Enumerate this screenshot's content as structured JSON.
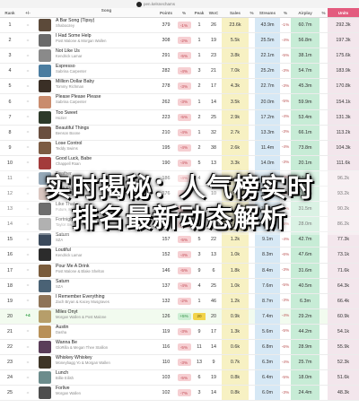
{
  "header": {
    "user_handle": "pen.kelsnechams",
    "columns": {
      "rank": "Rank",
      "delta": "+/-",
      "song": "Song",
      "points": "Points",
      "points_delta": "%",
      "peak": "Peak",
      "wow": "WoC",
      "sales": "Sales",
      "sales_delta": "%",
      "streams": "Streams",
      "streams_delta": "%",
      "airplay": "Airplay",
      "airplay_delta": "%",
      "units": "Units"
    }
  },
  "rows": [
    {
      "rank": "1",
      "delta": "=",
      "title": "A Bar Song (Tipsy)",
      "artist": "Shaboozey",
      "points": "379",
      "pd": "-1%",
      "pd_kind": "down",
      "peak": "1",
      "wow": "26",
      "sales": "23.6k",
      "sd": "",
      "streams": "43.9m",
      "std": "-1%",
      "airplay": "60.7m",
      "ad": "",
      "units": "292.3k",
      "art": "#5c4a3a"
    },
    {
      "rank": "2",
      "delta": "=",
      "title": "I Had Some Help",
      "artist": "Post Malone & Morgan Wallen",
      "points": "308",
      "pd": "-2%",
      "pd_kind": "down",
      "peak": "1",
      "wow": "19",
      "sales": "5.5k",
      "sd": "",
      "streams": "25.5m",
      "std": "-4%",
      "airplay": "56.8m",
      "ad": "",
      "units": "197.3k",
      "art": "#6b6b6b"
    },
    {
      "rank": "3",
      "delta": "=",
      "title": "Not Like Us",
      "artist": "Kendrick Lamar",
      "points": "291",
      "pd": "-5%",
      "pd_kind": "down",
      "peak": "1",
      "wow": "23",
      "sales": "3.8k",
      "sd": "",
      "streams": "22.1m",
      "std": "-5%",
      "airplay": "38.1m",
      "ad": "",
      "units": "175.6k",
      "art": "#8a8a8a"
    },
    {
      "rank": "4",
      "delta": "=",
      "title": "Espresso",
      "artist": "Sabrina Carpenter",
      "points": "282",
      "pd": "-4%",
      "pd_kind": "down",
      "peak": "3",
      "wow": "21",
      "sales": "7.0k",
      "sd": "",
      "streams": "25.2m",
      "std": "-3%",
      "airplay": "54.7m",
      "ad": "",
      "units": "183.9k",
      "art": "#4b7da0"
    },
    {
      "rank": "5",
      "delta": "=",
      "title": "Million Dollar Baby",
      "artist": "Tommy Richman",
      "points": "278",
      "pd": "-3%",
      "pd_kind": "down",
      "peak": "2",
      "wow": "17",
      "sales": "4.3k",
      "sd": "",
      "streams": "22.7m",
      "std": "-3%",
      "airplay": "45.3m",
      "ad": "",
      "units": "170.8k",
      "art": "#3a2f26"
    },
    {
      "rank": "6",
      "delta": "=",
      "title": "Please Please Please",
      "artist": "Sabrina Carpenter",
      "points": "262",
      "pd": "-3%",
      "pd_kind": "down",
      "peak": "1",
      "wow": "14",
      "sales": "3.5k",
      "sd": "",
      "streams": "20.0m",
      "std": "-5%",
      "airplay": "59.9m",
      "ad": "",
      "units": "154.1k",
      "art": "#c98c6e"
    },
    {
      "rank": "7",
      "delta": "=",
      "title": "Too Sweet",
      "artist": "Hozier",
      "points": "223",
      "pd": "-5%",
      "pd_kind": "down",
      "peak": "2",
      "wow": "25",
      "sales": "2.9k",
      "sd": "",
      "streams": "17.2m",
      "std": "-4%",
      "airplay": "53.4m",
      "ad": "",
      "units": "131.3k",
      "art": "#2d3a2a"
    },
    {
      "rank": "8",
      "delta": "=",
      "title": "Beautiful Things",
      "artist": "Benson Boone",
      "points": "210",
      "pd": "-4%",
      "pd_kind": "down",
      "peak": "1",
      "wow": "32",
      "sales": "2.7k",
      "sd": "",
      "streams": "13.3m",
      "std": "-3%",
      "airplay": "66.1m",
      "ad": "",
      "units": "113.2k",
      "art": "#6a4f3f"
    },
    {
      "rank": "9",
      "delta": "=",
      "title": "Lose Control",
      "artist": "Teddy Swims",
      "points": "195",
      "pd": "-4%",
      "pd_kind": "down",
      "peak": "2",
      "wow": "38",
      "sales": "2.6k",
      "sd": "",
      "streams": "11.4m",
      "std": "-4%",
      "airplay": "73.8m",
      "ad": "",
      "units": "104.3k",
      "art": "#7b5b43"
    },
    {
      "rank": "10",
      "delta": "=",
      "title": "Good Luck, Babe",
      "artist": "Chappell Roan",
      "points": "190",
      "pd": "-4%",
      "pd_kind": "down",
      "peak": "5",
      "wow": "13",
      "sales": "3.3k",
      "sd": "",
      "streams": "14.0m",
      "std": "-3%",
      "airplay": "20.1m",
      "ad": "",
      "units": "111.6k",
      "art": "#a33b3b"
    },
    {
      "rank": "11",
      "delta": "=",
      "title": "Feather",
      "artist": "Sabrina Carpenter",
      "points": "186",
      "pd": "-4%",
      "pd_kind": "down",
      "peak": "4",
      "wow": "32",
      "sales": "1.5k",
      "sd": "",
      "streams": "10.4m",
      "std": "-4%",
      "airplay": "57.9m",
      "ad": "",
      "units": "96.2k",
      "art": "#5f7c93"
    },
    {
      "rank": "12",
      "delta": "=",
      "title": "Pink Skies",
      "artist": "Zach Bryan",
      "points": "176",
      "pd": "-4%",
      "pd_kind": "down",
      "peak": "6",
      "wow": "10",
      "sales": "1.4k",
      "sd": "",
      "streams": "11.3m",
      "std": "-5%",
      "airplay": "24.8m",
      "ad": "",
      "units": "93.2k",
      "art": "#c7a9a0"
    },
    {
      "rank": "13",
      "delta": "=",
      "title": "Like That",
      "artist": "Future, Metro Boomin & Kendrick Lamar",
      "points": "175",
      "pd": "-4%",
      "pd_kind": "down",
      "peak": "1",
      "wow": "20",
      "sales": "1.6k",
      "sd": "",
      "streams": "11.0m",
      "std": "-3%",
      "airplay": "31.5m",
      "ad": "",
      "units": "90.2k",
      "art": "#1f1f1f"
    },
    {
      "rank": "14",
      "delta": "=",
      "title": "Fortnight",
      "artist": "Taylor Swift & Post Malone",
      "points": "165",
      "pd": "-4%",
      "pd_kind": "down",
      "peak": "1",
      "wow": "15",
      "sales": "1.5k",
      "sd": "",
      "streams": "10.6m",
      "std": "-5%",
      "airplay": "28.0m",
      "ad": "",
      "units": "86.2k",
      "art": "#888888"
    },
    {
      "rank": "15",
      "delta": "=",
      "title": "Saturn",
      "artist": "SZA",
      "points": "157",
      "pd": "-5%",
      "pd_kind": "down",
      "peak": "5",
      "wow": "22",
      "sales": "1.2k",
      "sd": "",
      "streams": "9.1m",
      "std": "-4%",
      "airplay": "42.7m",
      "ad": "",
      "units": "77.3k",
      "art": "#3b4a5c"
    },
    {
      "rank": "16",
      "delta": "=",
      "title": "Loutiful",
      "artist": "Kendrick Lamar",
      "points": "152",
      "pd": "-4%",
      "pd_kind": "down",
      "peak": "3",
      "wow": "13",
      "sales": "1.0k",
      "sd": "",
      "streams": "8.3m",
      "std": "-6%",
      "airplay": "47.6m",
      "ad": "",
      "units": "73.1k",
      "art": "#2c2c2c"
    },
    {
      "rank": "17",
      "delta": "=",
      "title": "Pour Me A Drink",
      "artist": "Post Malone & Blake Shelton",
      "points": "146",
      "pd": "-5%",
      "pd_kind": "down",
      "peak": "9",
      "wow": "6",
      "sales": "1.8k",
      "sd": "",
      "streams": "8.4m",
      "std": "-3%",
      "airplay": "31.6m",
      "ad": "",
      "units": "71.6k",
      "art": "#7a5c3c"
    },
    {
      "rank": "18",
      "delta": "=",
      "title": "Saturn",
      "artist": "SZA",
      "points": "137",
      "pd": "-4%",
      "pd_kind": "down",
      "peak": "4",
      "wow": "25",
      "sales": "1.0k",
      "sd": "",
      "streams": "7.6m",
      "std": "-5%",
      "airplay": "40.5m",
      "ad": "",
      "units": "64.3k",
      "art": "#4a6275"
    },
    {
      "rank": "19",
      "delta": "=",
      "title": "I Remember Everything",
      "artist": "Zach Bryan & Kacey Musgraves",
      "points": "132",
      "pd": "-2%",
      "pd_kind": "down",
      "peak": "1",
      "wow": "46",
      "sales": "1.2k",
      "sd": "",
      "streams": "8.7m",
      "std": "-3%",
      "airplay": "6.3m",
      "ad": "",
      "units": "66.4k",
      "art": "#8f7457"
    },
    {
      "rank": "20",
      "delta": "+4",
      "delta_kind": "up",
      "title": "Miles Onyt",
      "artist": "Morgan Wallen & Post Malone",
      "points": "126",
      "pd": "+5%",
      "pd_kind": "up",
      "peak": "20",
      "wow": "20",
      "sales": "0.9k",
      "sd": "",
      "streams": "7.4m",
      "std": "-4%",
      "airplay": "29.2m",
      "ad": "",
      "units": "60.9k",
      "art": "#b69e6a",
      "highlight": true,
      "peak_badge": true
    },
    {
      "rank": "21",
      "delta": "=",
      "title": "Austin",
      "artist": "Dasha",
      "points": "119",
      "pd": "-3%",
      "pd_kind": "down",
      "peak": "9",
      "wow": "17",
      "sales": "1.3k",
      "sd": "",
      "streams": "5.6m",
      "std": "-5%",
      "airplay": "44.2m",
      "ad": "",
      "units": "54.1k",
      "art": "#b89058"
    },
    {
      "rank": "22",
      "delta": "=",
      "title": "Wanna Be",
      "artist": "GloRilla & Megan Thee Stallion",
      "points": "116",
      "pd": "-5%",
      "pd_kind": "down",
      "peak": "11",
      "wow": "14",
      "sales": "0.6k",
      "sd": "",
      "streams": "6.8m",
      "std": "-6%",
      "airplay": "28.9m",
      "ad": "",
      "units": "55.9k",
      "art": "#5a3d59"
    },
    {
      "rank": "23",
      "delta": "=",
      "title": "Whiskey Whiskey",
      "artist": "Moneybagg Yo & Morgan Wallen",
      "points": "110",
      "pd": "-3%",
      "pd_kind": "down",
      "peak": "13",
      "wow": "9",
      "sales": "0.7k",
      "sd": "",
      "streams": "6.3m",
      "std": "-4%",
      "airplay": "25.7m",
      "ad": "",
      "units": "52.3k",
      "art": "#3e3527"
    },
    {
      "rank": "24",
      "delta": "=",
      "title": "Lunch",
      "artist": "Billie Eilish",
      "points": "103",
      "pd": "-5%",
      "pd_kind": "down",
      "peak": "6",
      "wow": "19",
      "sales": "0.8k",
      "sd": "",
      "streams": "6.4m",
      "std": "-5%",
      "airplay": "18.0m",
      "ad": "",
      "units": "51.6k",
      "art": "#6c8c8c"
    },
    {
      "rank": "25",
      "delta": "=",
      "title": "Forlive",
      "artist": "Morgan Wallen",
      "points": "102",
      "pd": "-7%",
      "pd_kind": "down",
      "peak": "3",
      "wow": "14",
      "sales": "0.8k",
      "sd": "",
      "streams": "6.0m",
      "std": "-3%",
      "airplay": "24.4m",
      "ad": "",
      "units": "48.3k",
      "art": "#4e4e4e"
    }
  ],
  "banner": {
    "line1": "实时揭秘：人气榜实时",
    "line2": "排名最新动态解析"
  }
}
